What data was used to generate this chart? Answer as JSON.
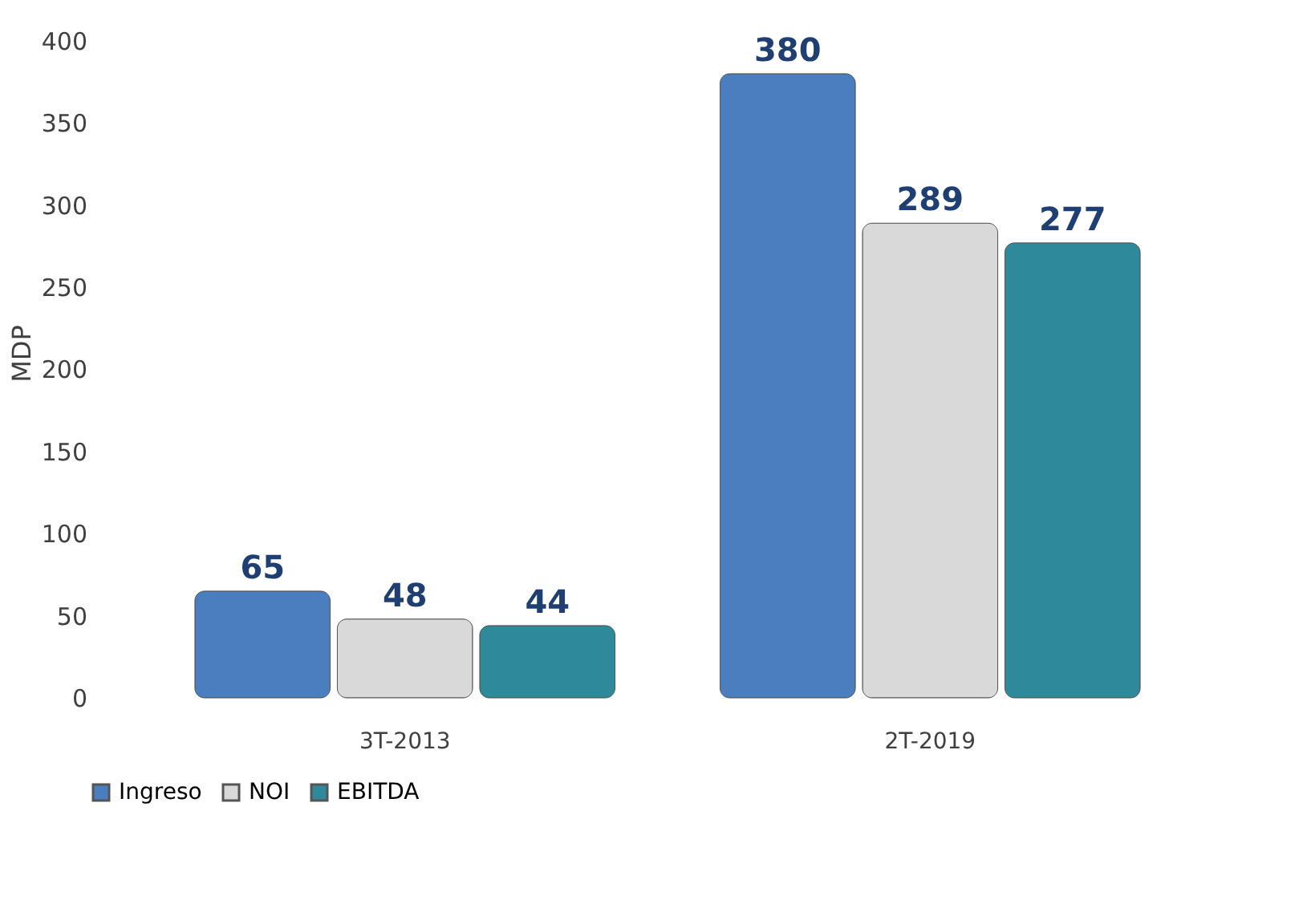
{
  "chart_data": {
    "type": "bar",
    "ylabel": "MDP",
    "categories": [
      "3T-2013",
      "2T-2019"
    ],
    "series": [
      {
        "name": "Ingreso",
        "color": "#4a7ebf",
        "values": [
          65,
          380
        ]
      },
      {
        "name": "NOI",
        "color": "#d9d9d9",
        "values": [
          48,
          289
        ]
      },
      {
        "name": "EBITDA",
        "color": "#2e8a9a",
        "values": [
          44,
          277
        ]
      }
    ],
    "ylim": [
      0,
      420
    ],
    "yticks": [
      0,
      50,
      100,
      150,
      200,
      250,
      300,
      350,
      400
    ],
    "data_labels": true,
    "grid": false,
    "legend": "bottom"
  }
}
